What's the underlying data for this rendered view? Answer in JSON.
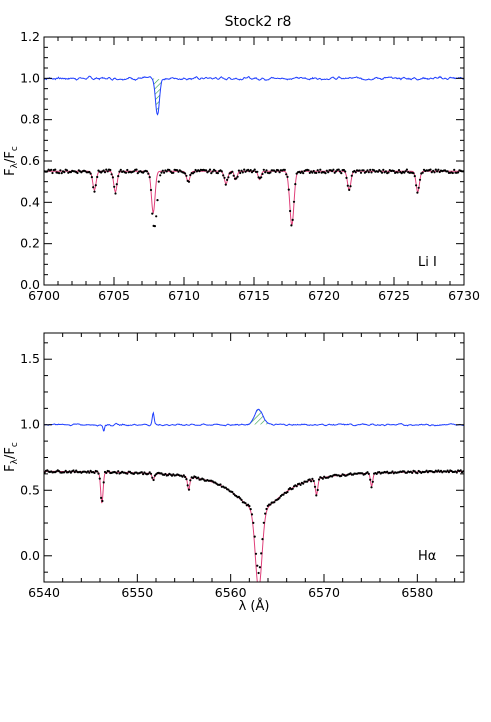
{
  "title": "Stock2 r8",
  "colors": {
    "residual": "#1f3fff",
    "model": "#e0407a",
    "observed": "#000000",
    "hatch": "#2ea043"
  },
  "chart_data": [
    {
      "type": "line",
      "panel": "Li I",
      "annotation": "Li I",
      "xlabel": "",
      "ylabel": "Fλ/Fc",
      "xlim": [
        6700,
        6730
      ],
      "ylim": [
        0.0,
        1.2
      ],
      "xticks": [
        "6700",
        "6705",
        "6710",
        "6715",
        "6720",
        "6725",
        "6730"
      ],
      "yticks": [
        "0.0",
        "0.2",
        "0.4",
        "0.6",
        "0.8",
        "1.0",
        "1.2"
      ],
      "continuum": 0.55,
      "residual_level": 1.0,
      "lines": [
        {
          "center": 6703.6,
          "depth": 0.09,
          "width": 0.12
        },
        {
          "center": 6705.1,
          "depth": 0.1,
          "width": 0.12
        },
        {
          "center": 6707.8,
          "depth": 0.2,
          "width": 0.13
        },
        {
          "center": 6710.3,
          "depth": 0.05,
          "width": 0.12
        },
        {
          "center": 6713.0,
          "depth": 0.06,
          "width": 0.12
        },
        {
          "center": 6713.7,
          "depth": 0.04,
          "width": 0.1
        },
        {
          "center": 6715.4,
          "depth": 0.04,
          "width": 0.1
        },
        {
          "center": 6717.7,
          "depth": 0.26,
          "width": 0.15
        },
        {
          "center": 6721.8,
          "depth": 0.09,
          "width": 0.12
        },
        {
          "center": 6726.7,
          "depth": 0.1,
          "width": 0.12
        }
      ],
      "residual_features": [
        {
          "center": 6708.1,
          "amplitude": -0.18,
          "width": 0.14,
          "hatched": true
        }
      ],
      "observed_excess": [
        {
          "center": 6708.0,
          "amplitude": -0.17,
          "width": 0.13
        }
      ],
      "series": [
        {
          "name": "",
          "role": "observed (dots)",
          "color": "#000000"
        },
        {
          "name": "",
          "role": "model",
          "color": "#e0407a"
        },
        {
          "name": "",
          "role": "residual",
          "color": "#1f3fff"
        }
      ]
    },
    {
      "type": "line",
      "panel": "Hα",
      "annotation": "Hα",
      "xlabel": "λ (Å)",
      "ylabel": "Fλ/Fc",
      "xlim": [
        6540,
        6585
      ],
      "ylim": [
        -0.2,
        1.7
      ],
      "xticks": [
        "6540",
        "6550",
        "6560",
        "6570",
        "6580"
      ],
      "yticks": [
        "0.0",
        "0.5",
        "1.0",
        "1.5"
      ],
      "continuum": 0.65,
      "residual_level": 1.0,
      "halpha": {
        "center": 6563.0,
        "core_depth": 0.6,
        "core_width": 0.35,
        "wing_depth": 0.3,
        "wing_width": 3.2
      },
      "lines": [
        {
          "center": 6546.2,
          "depth": 0.24,
          "width": 0.13
        },
        {
          "center": 6551.7,
          "depth": 0.05,
          "width": 0.12
        },
        {
          "center": 6555.5,
          "depth": 0.1,
          "width": 0.12
        },
        {
          "center": 6569.2,
          "depth": 0.12,
          "width": 0.13
        },
        {
          "center": 6575.1,
          "depth": 0.1,
          "width": 0.12
        }
      ],
      "residual_features": [
        {
          "center": 6551.7,
          "amplitude": 0.09,
          "width": 0.1,
          "hatched": false
        },
        {
          "center": 6546.4,
          "amplitude": -0.05,
          "width": 0.08,
          "hatched": false
        },
        {
          "center": 6563.0,
          "amplitude": 0.12,
          "width": 0.45,
          "hatched": true
        }
      ],
      "observed_excess": [
        {
          "center": 6563.0,
          "amplitude": 0.12,
          "width": 0.45
        }
      ],
      "series": [
        {
          "name": "",
          "role": "observed (dots)",
          "color": "#000000"
        },
        {
          "name": "",
          "role": "model",
          "color": "#e0407a"
        },
        {
          "name": "",
          "role": "residual",
          "color": "#1f3fff"
        }
      ]
    }
  ]
}
